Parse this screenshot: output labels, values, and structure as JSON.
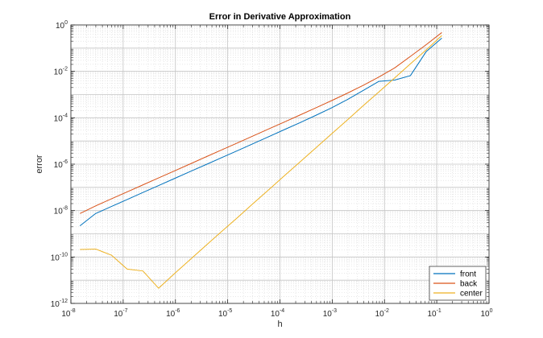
{
  "chart_data": {
    "type": "line",
    "title": "Error in Derivative Approximation",
    "xlabel": "h",
    "ylabel": "error",
    "xscale": "log",
    "yscale": "log",
    "xlim": [
      1e-08,
      1
    ],
    "ylim": [
      1e-12,
      1
    ],
    "grid": true,
    "minor_grid": true,
    "legend_position": "bottom-right",
    "x_ticks": [
      {
        "value": 1e-08,
        "base": "10",
        "exp": "-8"
      },
      {
        "value": 1e-07,
        "base": "10",
        "exp": "-7"
      },
      {
        "value": 1e-06,
        "base": "10",
        "exp": "-6"
      },
      {
        "value": 1e-05,
        "base": "10",
        "exp": "-5"
      },
      {
        "value": 0.0001,
        "base": "10",
        "exp": "-4"
      },
      {
        "value": 0.001,
        "base": "10",
        "exp": "-3"
      },
      {
        "value": 0.01,
        "base": "10",
        "exp": "-2"
      },
      {
        "value": 0.1,
        "base": "10",
        "exp": "-1"
      },
      {
        "value": 1,
        "base": "10",
        "exp": "0"
      }
    ],
    "y_ticks": [
      {
        "value": 1e-12,
        "base": "10",
        "exp": "-12"
      },
      {
        "value": 1e-10,
        "base": "10",
        "exp": "-10"
      },
      {
        "value": 1e-08,
        "base": "10",
        "exp": "-8"
      },
      {
        "value": 1e-06,
        "base": "10",
        "exp": "-6"
      },
      {
        "value": 0.0001,
        "base": "10",
        "exp": "-4"
      },
      {
        "value": 0.01,
        "base": "10",
        "exp": "-2"
      },
      {
        "value": 1,
        "base": "10",
        "exp": "0"
      }
    ],
    "x": [
      0.125,
      0.0625,
      0.03125,
      0.015625,
      0.0078125,
      0.00390625,
      0.001953125,
      0.0009765625,
      0.00048828125,
      0.000244140625,
      0.0001220703125,
      6.103515625e-05,
      3.0517578125e-05,
      1.52587890625e-05,
      7.62939453125e-06,
      3.814697265625e-06,
      1.9073486328125e-06,
      9.5367431640625e-07,
      4.76837158203125e-07,
      2.384185791015625e-07,
      1.1920928955078125e-07,
      5.960464477539063e-08,
      2.9802322387695312e-08,
      1.4901161193847656e-08
    ],
    "series": [
      {
        "name": "front",
        "color": "#0072BD",
        "values": [
          0.27,
          0.07,
          0.0065,
          0.0042,
          0.0037,
          0.0015,
          0.00061,
          0.00027,
          0.000128,
          6.2e-05,
          3.1e-05,
          1.53e-05,
          7.6e-06,
          3.8e-06,
          1.9e-06,
          9.5e-07,
          4.8e-07,
          2.4e-07,
          1.2e-07,
          6e-08,
          3e-08,
          1.5e-08,
          7.5e-09,
          2.2e-09
        ]
      },
      {
        "name": "back",
        "color": "#D95319",
        "values": [
          0.47,
          0.14,
          0.044,
          0.014,
          0.0057,
          0.0025,
          0.00115,
          0.00055,
          0.00027,
          0.000133,
          6.6e-05,
          3.3e-05,
          1.64e-05,
          8.2e-06,
          4.1e-06,
          2.05e-06,
          1.02e-06,
          5.1e-07,
          2.56e-07,
          1.28e-07,
          6.4e-08,
          3.2e-08,
          1.6e-08,
          7.5e-09
        ]
      },
      {
        "name": "center",
        "color": "#EDB120",
        "values": [
          0.35,
          0.083,
          0.021,
          0.0052,
          0.0013,
          0.00033,
          8.1e-05,
          2.03e-05,
          5.1e-06,
          1.27e-06,
          3.2e-07,
          7.9e-08,
          2e-08,
          4.9e-09,
          1.24e-09,
          3.1e-10,
          7.7e-11,
          1.9e-11,
          4.5e-12,
          2.5e-11,
          3e-11,
          1.2e-10,
          2.2e-10,
          2.1e-10
        ]
      }
    ]
  }
}
